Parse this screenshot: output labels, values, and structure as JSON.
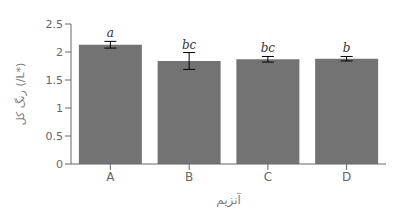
{
  "chart_data": {
    "type": "bar",
    "categories": [
      "A",
      "B",
      "C",
      "D"
    ],
    "values": [
      2.13,
      1.84,
      1.87,
      1.88
    ],
    "errors": [
      0.06,
      0.15,
      0.05,
      0.04
    ],
    "annotations": [
      "a",
      "bc",
      "bc",
      "b"
    ],
    "color": "#737373",
    "xlabel": "آنزیم",
    "ylabel": "رنگ کل (/L*)",
    "ylim": [
      0,
      2.5
    ],
    "yticks": [
      0,
      0.5,
      1,
      1.5,
      2,
      2.5
    ],
    "grid": false
  }
}
